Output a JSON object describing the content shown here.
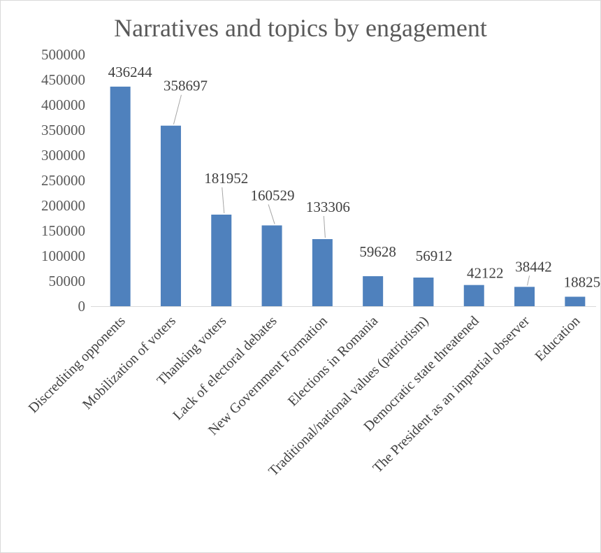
{
  "chart_data": {
    "type": "bar",
    "title": "Narratives and topics by engagement",
    "xlabel": "",
    "ylabel": "",
    "ylim": [
      0,
      500000
    ],
    "yticks": [
      0,
      50000,
      100000,
      150000,
      200000,
      250000,
      300000,
      350000,
      400000,
      450000,
      500000
    ],
    "grid": false,
    "legend": "none",
    "bar_color": "#4f81bd",
    "categories": [
      "Discrediting opponents",
      "Mobilization of voters",
      "Thanking voters",
      "Lack of electoral debates",
      "New Government Formation",
      "Elections in Romania",
      "Traditional/national values (patriotism)",
      "Democratic state threatened",
      "The President as an impartial observer",
      "Education"
    ],
    "values": [
      436244,
      358697,
      181952,
      160529,
      133306,
      59628,
      56912,
      42122,
      38442,
      18825
    ]
  }
}
